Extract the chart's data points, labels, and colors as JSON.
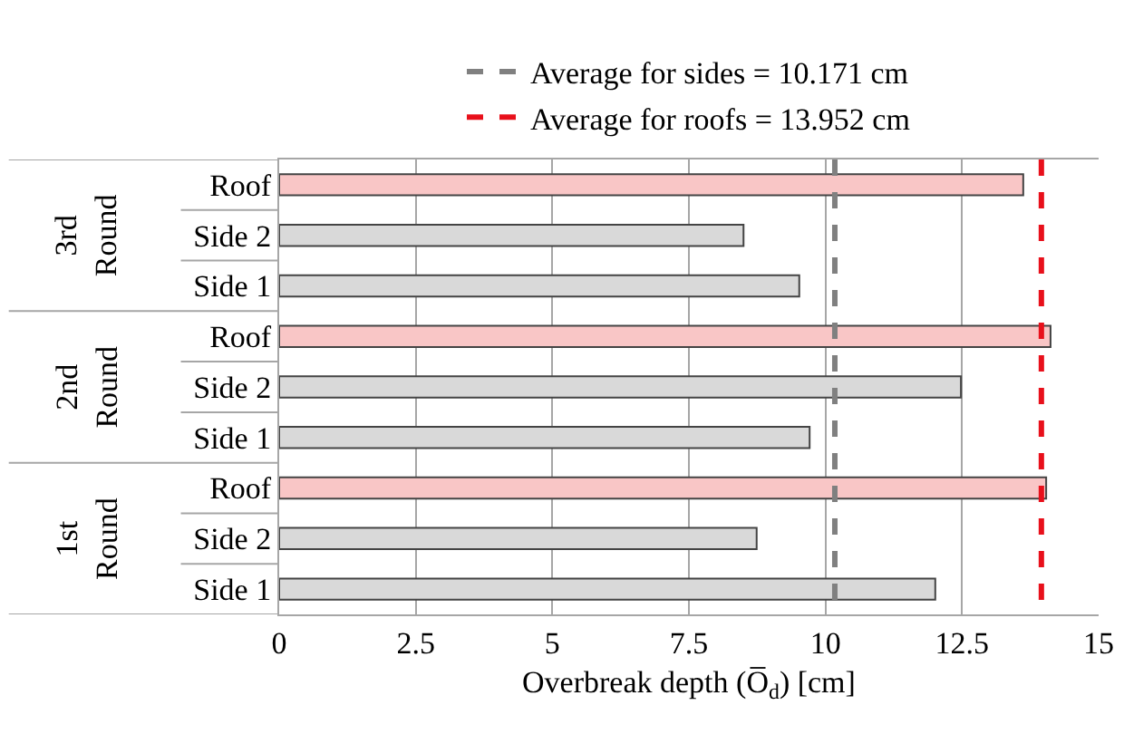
{
  "chart_data": {
    "type": "bar",
    "orientation": "horizontal",
    "categories": [
      "Roof",
      "Side 2",
      "Side 1",
      "Roof",
      "Side 2",
      "Side 1",
      "Roof",
      "Side 2",
      "Side 1"
    ],
    "values": [
      13.62,
      8.5,
      9.52,
      14.12,
      12.48,
      9.71,
      14.04,
      8.74,
      12.01
    ],
    "colors": [
      "#f9c6c6",
      "#d9d9d9",
      "#d9d9d9",
      "#f9c6c6",
      "#d9d9d9",
      "#d9d9d9",
      "#f9c6c6",
      "#d9d9d9",
      "#d9d9d9"
    ],
    "xlabel": "Overbreak depth (O̅$_{d}$) [cm]",
    "xlim": [
      0,
      15
    ],
    "xticks": [
      0,
      2.5,
      5,
      7.5,
      10,
      12.5,
      15
    ],
    "grid": "x",
    "legend": "top",
    "ref_lines": [
      {
        "axis": "x",
        "value": 10.171,
        "label": "Average for sides = 10.171 cm",
        "color": "#808080",
        "line_style": "dashed"
      },
      {
        "axis": "x",
        "value": 13.952,
        "label": "Average for roofs = 13.952 cm",
        "color": "#e8101b",
        "line_style": "dashed"
      }
    ],
    "annotations": [
      "3rd Round",
      "2nd Round",
      "1st Round"
    ]
  }
}
